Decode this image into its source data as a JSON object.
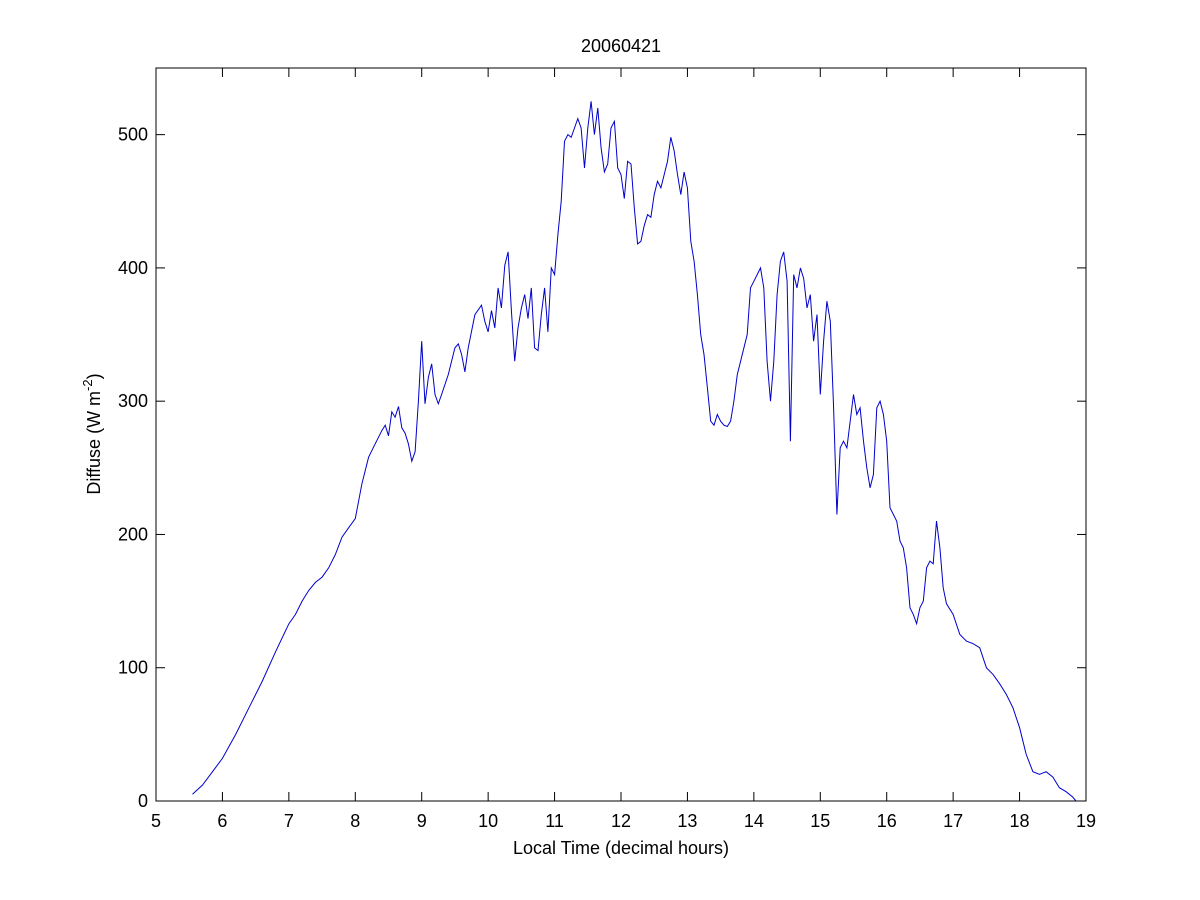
{
  "chart_data": {
    "type": "line",
    "title": "20060421",
    "xlabel": "Local Time (decimal hours)",
    "ylabel": {
      "text": "Diffuse (W m",
      "superscript": "-2",
      "suffix": ")"
    },
    "xlim": [
      5,
      19
    ],
    "ylim": [
      0,
      550
    ],
    "xticks": [
      5,
      6,
      7,
      8,
      9,
      10,
      11,
      12,
      13,
      14,
      15,
      16,
      17,
      18,
      19
    ],
    "yticks": [
      0,
      100,
      200,
      300,
      400,
      500
    ],
    "grid": false,
    "line_color": "#0000cc",
    "series": [
      {
        "x": [
          5.55,
          5.7,
          5.85,
          6.0,
          6.2,
          6.4,
          6.6,
          6.8,
          7.0,
          7.1,
          7.2,
          7.3,
          7.4,
          7.5,
          7.6,
          7.7,
          7.8,
          7.9,
          8.0,
          8.1,
          8.2,
          8.3,
          8.4,
          8.45,
          8.5,
          8.55,
          8.6,
          8.65,
          8.7,
          8.75,
          8.8,
          8.85,
          8.9,
          8.95,
          9.0,
          9.05,
          9.1,
          9.15,
          9.2,
          9.25,
          9.3,
          9.4,
          9.5,
          9.55,
          9.6,
          9.65,
          9.7,
          9.8,
          9.9,
          9.95,
          10.0,
          10.05,
          10.1,
          10.15,
          10.2,
          10.25,
          10.3,
          10.35,
          10.4,
          10.45,
          10.5,
          10.55,
          10.6,
          10.65,
          10.7,
          10.75,
          10.8,
          10.85,
          10.9,
          10.95,
          11.0,
          11.05,
          11.1,
          11.15,
          11.2,
          11.25,
          11.3,
          11.35,
          11.4,
          11.45,
          11.5,
          11.55,
          11.6,
          11.65,
          11.7,
          11.75,
          11.8,
          11.85,
          11.9,
          11.95,
          12.0,
          12.05,
          12.1,
          12.15,
          12.2,
          12.25,
          12.3,
          12.35,
          12.4,
          12.45,
          12.5,
          12.55,
          12.6,
          12.65,
          12.7,
          12.75,
          12.8,
          12.85,
          12.9,
          12.95,
          13.0,
          13.05,
          13.1,
          13.15,
          13.2,
          13.25,
          13.3,
          13.35,
          13.4,
          13.45,
          13.5,
          13.55,
          13.6,
          13.65,
          13.7,
          13.75,
          13.8,
          13.85,
          13.9,
          13.95,
          14.0,
          14.05,
          14.1,
          14.15,
          14.2,
          14.25,
          14.3,
          14.35,
          14.4,
          14.45,
          14.5,
          14.55,
          14.6,
          14.65,
          14.7,
          14.75,
          14.8,
          14.85,
          14.9,
          14.95,
          15.0,
          15.05,
          15.1,
          15.15,
          15.2,
          15.25,
          15.3,
          15.35,
          15.4,
          15.45,
          15.5,
          15.55,
          15.6,
          15.65,
          15.7,
          15.75,
          15.8,
          15.85,
          15.9,
          15.95,
          16.0,
          16.05,
          16.1,
          16.15,
          16.2,
          16.25,
          16.3,
          16.35,
          16.4,
          16.45,
          16.5,
          16.55,
          16.6,
          16.65,
          16.7,
          16.75,
          16.8,
          16.85,
          16.9,
          17.0,
          17.1,
          17.2,
          17.3,
          17.4,
          17.5,
          17.6,
          17.7,
          17.8,
          17.9,
          18.0,
          18.1,
          18.2,
          18.3,
          18.4,
          18.5,
          18.6,
          18.7,
          18.8,
          18.85
        ],
        "y": [
          5,
          12,
          22,
          32,
          50,
          70,
          90,
          112,
          133,
          140,
          150,
          158,
          164,
          168,
          175,
          185,
          198,
          205,
          212,
          238,
          258,
          268,
          278,
          282,
          274,
          292,
          288,
          296,
          280,
          276,
          268,
          255,
          262,
          300,
          345,
          298,
          318,
          328,
          305,
          298,
          305,
          320,
          340,
          343,
          335,
          322,
          340,
          365,
          372,
          360,
          352,
          368,
          355,
          385,
          370,
          402,
          412,
          368,
          330,
          355,
          370,
          380,
          362,
          385,
          340,
          338,
          365,
          385,
          352,
          400,
          395,
          425,
          450,
          495,
          500,
          498,
          505,
          512,
          505,
          475,
          505,
          525,
          500,
          520,
          490,
          472,
          478,
          505,
          510,
          475,
          470,
          452,
          480,
          478,
          445,
          418,
          420,
          432,
          440,
          438,
          455,
          465,
          460,
          470,
          480,
          498,
          488,
          470,
          455,
          472,
          460,
          420,
          405,
          380,
          350,
          335,
          310,
          285,
          282,
          290,
          285,
          282,
          281,
          285,
          300,
          320,
          330,
          340,
          350,
          385,
          390,
          395,
          400,
          385,
          330,
          300,
          330,
          380,
          405,
          412,
          390,
          270,
          395,
          385,
          400,
          392,
          370,
          380,
          345,
          365,
          305,
          345,
          375,
          360,
          295,
          215,
          265,
          270,
          265,
          285,
          305,
          290,
          295,
          270,
          250,
          235,
          245,
          295,
          300,
          290,
          270,
          220,
          215,
          210,
          195,
          190,
          175,
          145,
          140,
          133,
          145,
          150,
          175,
          180,
          178,
          210,
          190,
          160,
          148,
          140,
          125,
          120,
          118,
          115,
          100,
          95,
          88,
          80,
          70,
          55,
          35,
          22,
          20,
          22,
          18,
          10,
          7,
          3,
          0
        ]
      }
    ]
  }
}
